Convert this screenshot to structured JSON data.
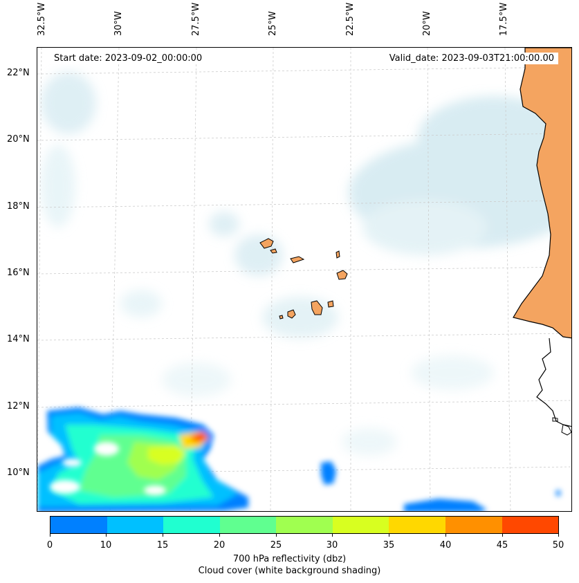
{
  "map": {
    "lon_labels": [
      "32.5°W",
      "30°W",
      "27.5°W",
      "25°W",
      "22.5°W",
      "20°W",
      "17.5°W"
    ],
    "lat_labels": [
      "22°N",
      "20°N",
      "18°N",
      "16°N",
      "14°N",
      "12°N",
      "10°N"
    ],
    "start_date": "Start date: 2023-09-02_00:00:00",
    "valid_date": "Valid_date: 2023-09-03T21:00:00.00",
    "colors": {
      "land": "#f4a460",
      "cloud": "#add8e6",
      "coast": "#000000",
      "grid": "#cccccc"
    }
  },
  "colorbar": {
    "ticks": [
      "0",
      "10",
      "15",
      "20",
      "25",
      "30",
      "35",
      "40",
      "45",
      "50"
    ],
    "colors": [
      "#0080ff",
      "#00c0ff",
      "#20ffd0",
      "#60ff90",
      "#a0ff50",
      "#d8ff20",
      "#ffd800",
      "#ff9000",
      "#ff4800"
    ],
    "label_line1": "700 hPa reflectivity (dbz)",
    "label_line2": "Cloud cover (white background shading)"
  }
}
